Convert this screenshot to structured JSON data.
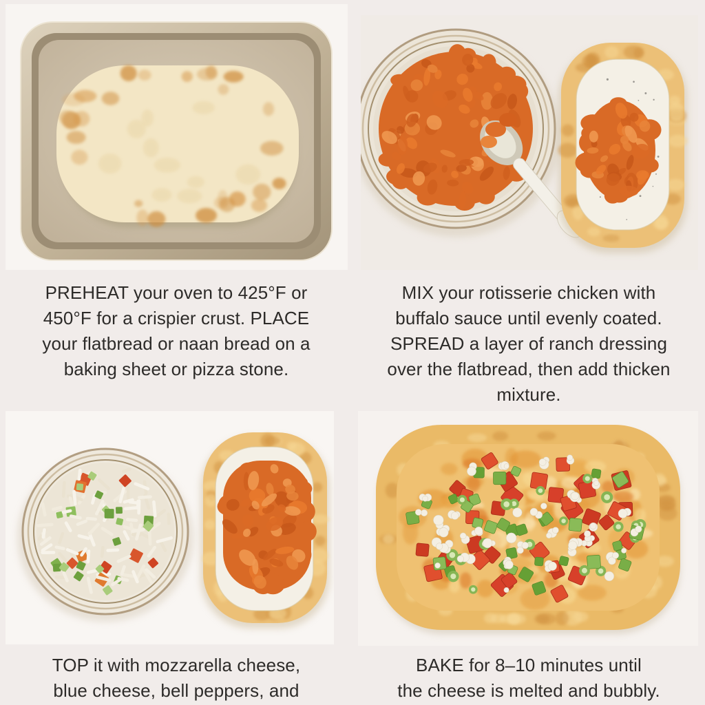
{
  "steps": [
    {
      "photo_label": "flatbread on gold baking sheet",
      "lines": [
        "PREHEAT your oven to 425°F or",
        "450°F for a crispier crust. PLACE",
        "your flatbread or naan bread on a",
        "baking sheet or pizza stone."
      ]
    },
    {
      "photo_label": "bowl of buffalo chicken with spoon and ranch-covered flatbread",
      "lines": [
        "MIX your rotisserie chicken with",
        "buffalo sauce until evenly coated.",
        "SPREAD a layer of ranch dressing",
        "over the flatbread, then add thicken",
        "mixture."
      ]
    },
    {
      "photo_label": "bowl of mozzarella and pepper mix beside chicken-topped flatbread",
      "lines": [
        "TOP it with mozzarella cheese,",
        "blue cheese, bell peppers, and"
      ]
    },
    {
      "photo_label": "baked buffalo chicken flatbread with melted cheese and peppers",
      "lines": [
        "BAKE for 8–10 minutes until",
        "the cheese is melted and bubbly."
      ]
    }
  ],
  "colors": {
    "page_bg": "#f1ecea",
    "text": "#2d2b29",
    "tray_metal": "#c3b499",
    "flatbread_dough": "#f3e6c5",
    "crust_golden": "#ecc077",
    "buffalo_chicken": "#d96a26",
    "ranch_dressing": "#f4f0e6",
    "mozzarella": "#f7f3ea",
    "red_pepper": "#d7402a",
    "green_pepper": "#79ae47",
    "blue_cheese_crumble": "#f4efe3"
  }
}
